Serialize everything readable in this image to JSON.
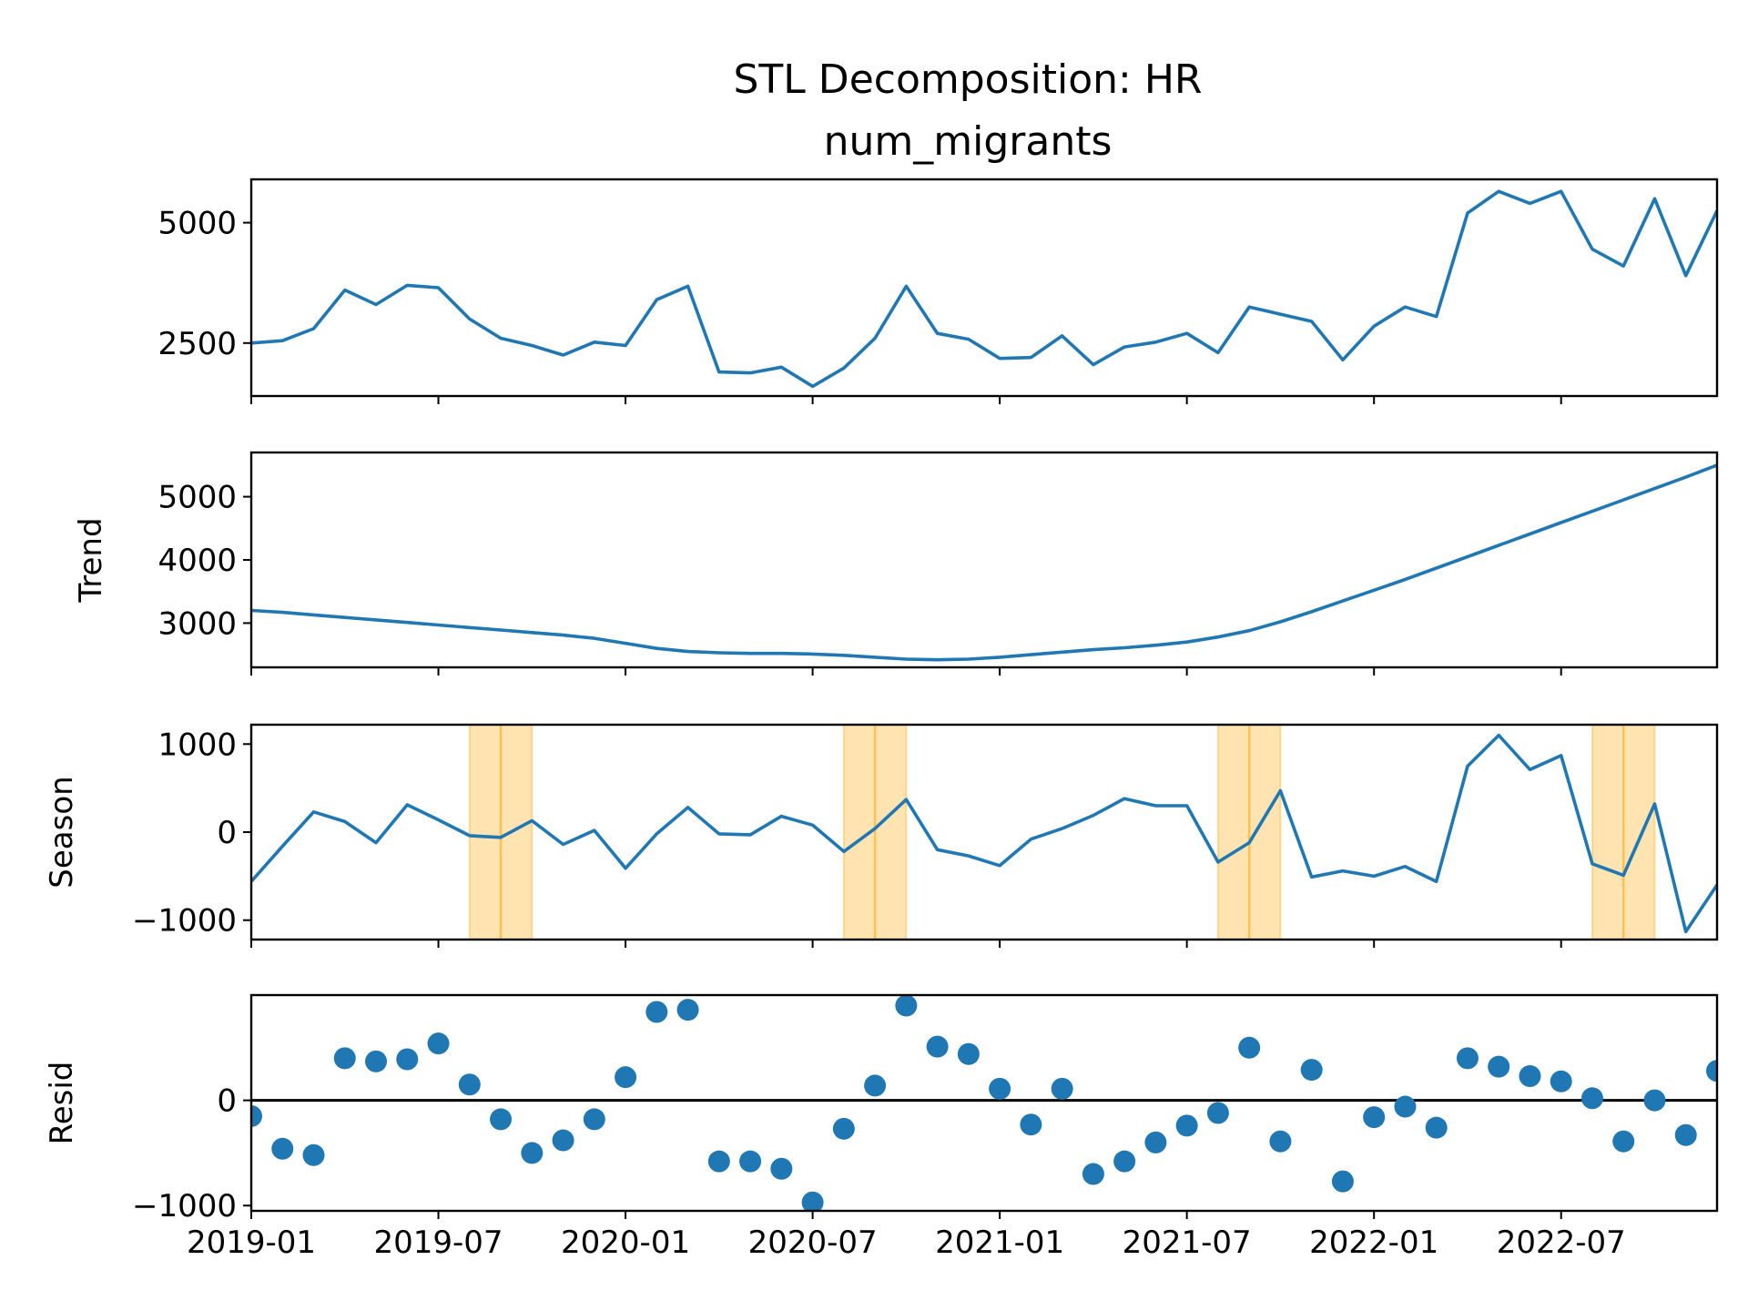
{
  "chart_data": {
    "title": "STL Decomposition: HR",
    "subtitle": "num_migrants",
    "type": "line",
    "x_dates": [
      "2019-01",
      "2019-02",
      "2019-03",
      "2019-04",
      "2019-05",
      "2019-06",
      "2019-07",
      "2019-08",
      "2019-09",
      "2019-10",
      "2019-11",
      "2019-12",
      "2020-01",
      "2020-02",
      "2020-03",
      "2020-04",
      "2020-05",
      "2020-06",
      "2020-07",
      "2020-08",
      "2020-09",
      "2020-10",
      "2020-11",
      "2020-12",
      "2021-01",
      "2021-02",
      "2021-03",
      "2021-04",
      "2021-05",
      "2021-06",
      "2021-07",
      "2021-08",
      "2021-09",
      "2021-10",
      "2021-11",
      "2021-12",
      "2022-01",
      "2022-02",
      "2022-03",
      "2022-04",
      "2022-05",
      "2022-06",
      "2022-07",
      "2022-08",
      "2022-09",
      "2022-10",
      "2022-11",
      "2022-12"
    ],
    "x_tick_labels": [
      "2019-01",
      "2019-07",
      "2020-01",
      "2020-07",
      "2021-01",
      "2021-07",
      "2022-01",
      "2022-07"
    ],
    "x_range": [
      "2019-01",
      "2022-12"
    ],
    "panels": [
      {
        "id": "observed",
        "ylabel": "",
        "kind": "line",
        "color": "#1f77b4",
        "ylim": [
          1400,
          5900
        ],
        "yticks": [
          2500,
          5000
        ],
        "ytick_labels": [
          "2500",
          "5000"
        ],
        "values": [
          2500,
          2550,
          2800,
          3600,
          3300,
          3700,
          3650,
          3000,
          2600,
          2450,
          2250,
          2520,
          2450,
          3400,
          3680,
          1900,
          1880,
          2000,
          1600,
          1980,
          2600,
          3680,
          2700,
          2580,
          2180,
          2200,
          2650,
          2050,
          2420,
          2520,
          2700,
          2300,
          3250,
          3100,
          2950,
          2150,
          2850,
          3250,
          3050,
          5200,
          5650,
          5400,
          5650,
          4450,
          4100,
          5500,
          3900,
          5250
        ],
        "shaded_months": [
          "2019-09",
          "2020-09",
          "2021-09",
          "2022-09"
        ]
      },
      {
        "id": "trend",
        "ylabel": "Trend",
        "kind": "line",
        "color": "#1f77b4",
        "ylim": [
          2300,
          5700
        ],
        "yticks": [
          3000,
          4000,
          5000
        ],
        "ytick_labels": [
          "3000",
          "4000",
          "5000"
        ],
        "values": [
          3200,
          3170,
          3130,
          3090,
          3050,
          3010,
          2970,
          2930,
          2890,
          2850,
          2810,
          2760,
          2680,
          2600,
          2550,
          2530,
          2520,
          2520,
          2510,
          2490,
          2460,
          2430,
          2420,
          2430,
          2460,
          2500,
          2540,
          2580,
          2610,
          2650,
          2700,
          2780,
          2880,
          3020,
          3180,
          3350,
          3520,
          3690,
          3870,
          4050,
          4230,
          4410,
          4590,
          4770,
          4950,
          5130,
          5310,
          5500
        ]
      },
      {
        "id": "season",
        "ylabel": "Season",
        "kind": "line",
        "color": "#1f77b4",
        "ylim": [
          -1220,
          1220
        ],
        "yticks": [
          -1000,
          0,
          1000
        ],
        "ytick_labels": [
          "−1000",
          "0",
          "1000"
        ],
        "values": [
          -560,
          -160,
          230,
          120,
          -120,
          310,
          140,
          -40,
          -60,
          130,
          -140,
          20,
          -410,
          -20,
          280,
          -20,
          -30,
          180,
          80,
          -220,
          40,
          370,
          -200,
          -270,
          -380,
          -80,
          40,
          190,
          380,
          300,
          300,
          -340,
          -120,
          470,
          -510,
          -440,
          -500,
          -390,
          -560,
          750,
          1100,
          710,
          870,
          -360,
          -490,
          320,
          -1130,
          -600
        ],
        "highlight_months": [
          "2019-09",
          "2020-09",
          "2021-09",
          "2022-09"
        ],
        "highlight_color": "#ffa500"
      },
      {
        "id": "resid",
        "ylabel": "Resid",
        "kind": "scatter",
        "color": "#1f77b4",
        "zero_line": true,
        "ylim": [
          -1050,
          1000
        ],
        "yticks": [
          -1000,
          0
        ],
        "ytick_labels": [
          "−1000",
          "0"
        ],
        "values": [
          -150,
          -460,
          -520,
          400,
          370,
          390,
          540,
          150,
          -180,
          -500,
          -380,
          -180,
          220,
          840,
          860,
          -580,
          -580,
          -650,
          -970,
          -270,
          140,
          900,
          510,
          440,
          110,
          -230,
          110,
          -700,
          -580,
          -400,
          -240,
          -120,
          500,
          -390,
          290,
          -770,
          -160,
          -60,
          -260,
          400,
          320,
          230,
          180,
          20,
          -390,
          0,
          -330,
          280
        ]
      }
    ]
  }
}
